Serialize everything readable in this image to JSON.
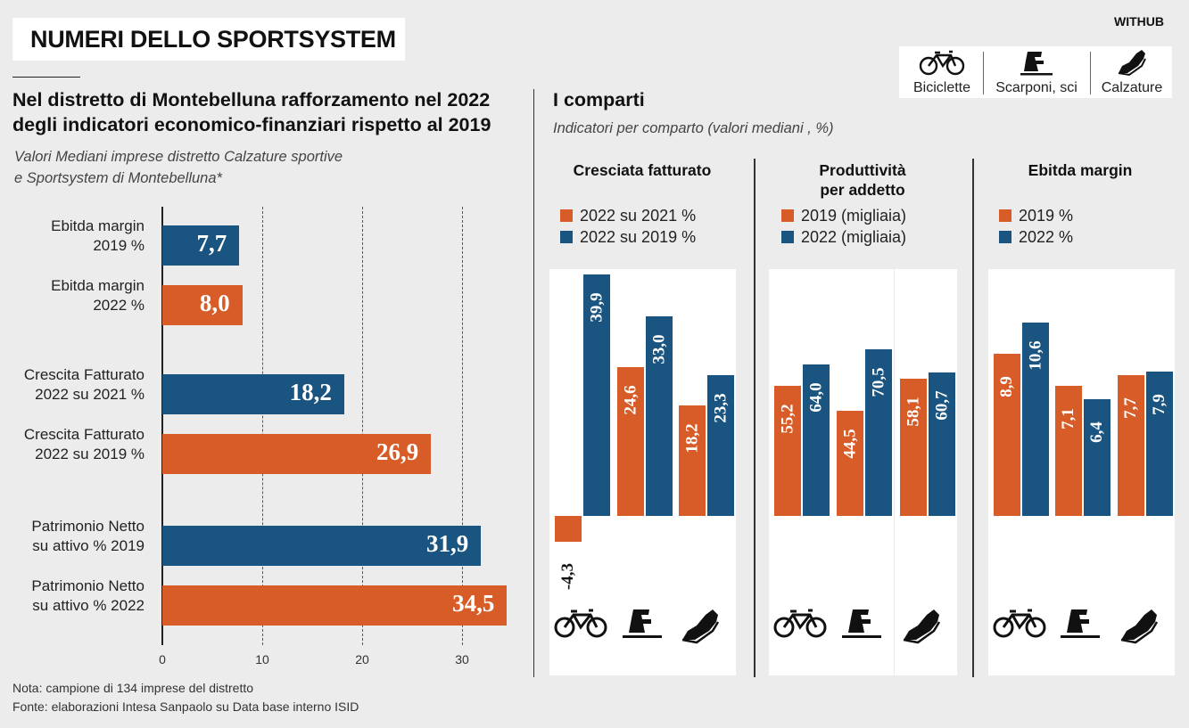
{
  "header": {
    "title": "NUMERI DELLO SPORTSYSTEM",
    "brand": "WITHUB"
  },
  "colors": {
    "orange": "#d75c27",
    "blue": "#1a5480",
    "background": "#ececec",
    "stripe": "#ffffff"
  },
  "legend_icons": [
    {
      "icon": "bicycle-icon",
      "label": "Biciclette"
    },
    {
      "icon": "ski-boot-icon",
      "label": "Scarponi, sci"
    },
    {
      "icon": "sneaker-icon",
      "label": "Calzature"
    }
  ],
  "left": {
    "title_line1": "Nel distretto di Montebelluna rafforzamento nel 2022",
    "title_line2": "degli indicatori economico-finanziari rispetto al 2019",
    "subtitle_line1": "Valori Mediani imprese distretto Calzature sportive",
    "subtitle_line2": "e Sportsystem di Montebelluna*"
  },
  "right": {
    "title": "I comparti",
    "subtitle": "Indicatori per comparto (valori mediani , %)"
  },
  "notes": {
    "line1": "Nota: campione di 134 imprese del distretto",
    "line2": "Fonte: elaborazioni Intesa Sanpaolo su Data base interno ISID"
  },
  "chart_data": [
    {
      "type": "bar",
      "orientation": "horizontal",
      "xlim": [
        0,
        35
      ],
      "xticks": [
        "0",
        "10",
        "20",
        "30"
      ],
      "grid": "dashed vertical",
      "bars": [
        {
          "label_line1": "Ebitda margin",
          "label_line2": "2019 %",
          "value": 7.7,
          "text": "7,7",
          "color": "blue"
        },
        {
          "label_line1": "Ebitda margin",
          "label_line2": "2022 %",
          "value": 8.0,
          "text": "8,0",
          "color": "orange"
        },
        {
          "label_line1": "Crescita Fatturato",
          "label_line2": "2022 su 2021 %",
          "value": 18.2,
          "text": "18,2",
          "color": "blue"
        },
        {
          "label_line1": "Crescita Fatturato",
          "label_line2": "2022 su 2019 %",
          "value": 26.9,
          "text": "26,9",
          "color": "orange"
        },
        {
          "label_line1": "Patrimonio Netto",
          "label_line2": "su attivo % 2019",
          "value": 31.9,
          "text": "31,9",
          "color": "blue"
        },
        {
          "label_line1": "Patrimonio Netto",
          "label_line2": "su attivo % 2022",
          "value": 34.5,
          "text": "34,5",
          "color": "orange"
        }
      ]
    },
    {
      "type": "bar",
      "title_line1": "Cresciata fatturato",
      "title_line2": "",
      "categories": [
        "Biciclette",
        "Scarponi, sci",
        "Calzature"
      ],
      "series": [
        {
          "name": "2022 su 2021 %",
          "values": [
            -4.3,
            24.6,
            18.2
          ],
          "labels": [
            "-4,3",
            "24,6",
            "18,2"
          ],
          "color": "orange"
        },
        {
          "name": "2022 su 2019 %",
          "values": [
            39.9,
            33.0,
            23.3
          ],
          "labels": [
            "39,9",
            "33,0",
            "23,3"
          ],
          "color": "blue"
        }
      ],
      "ylim": [
        -8,
        43
      ]
    },
    {
      "type": "bar",
      "title_line1": "Produttività",
      "title_line2": "per addetto",
      "categories": [
        "Biciclette",
        "Scarponi, sci",
        "Calzature"
      ],
      "series": [
        {
          "name": "2019 (migliaia)",
          "values": [
            55.2,
            44.5,
            58.1
          ],
          "labels": [
            "55,2",
            "44,5",
            "58,1"
          ],
          "color": "orange"
        },
        {
          "name": "2022 (migliaia)",
          "values": [
            64.0,
            70.5,
            60.7
          ],
          "labels": [
            "64,0",
            "70,5",
            "60,7"
          ],
          "color": "blue"
        }
      ],
      "ylim": [
        0,
        100
      ]
    },
    {
      "type": "bar",
      "title_line1": "Ebitda margin",
      "title_line2": "",
      "categories": [
        "Biciclette",
        "Scarponi, sci",
        "Calzature"
      ],
      "series": [
        {
          "name": "2019 %",
          "values": [
            8.9,
            7.1,
            7.7
          ],
          "labels": [
            "8,9",
            "7,1",
            "7,7"
          ],
          "color": "orange"
        },
        {
          "name": "2022 %",
          "values": [
            10.6,
            6.4,
            7.9
          ],
          "labels": [
            "10,6",
            "6,4",
            "7,9"
          ],
          "color": "blue"
        }
      ],
      "ylim": [
        0,
        15
      ]
    }
  ]
}
